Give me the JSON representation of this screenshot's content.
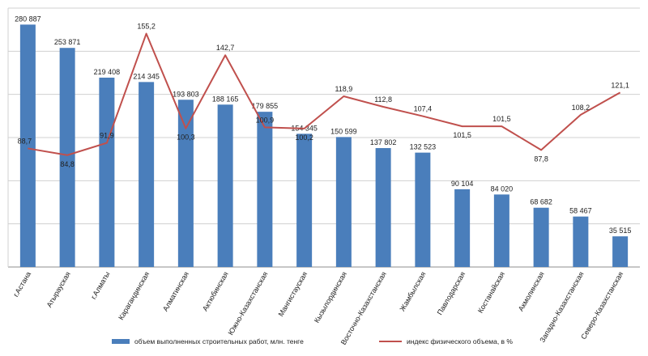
{
  "chart_data": {
    "type": "bar",
    "categories": [
      "г.Астана",
      "Атырауская",
      "г.Алматы",
      "Карагандинская",
      "Алматинская",
      "Актюбинская",
      "Южно-Казахстанская",
      "Мангистауская",
      "Кызылординская",
      "Восточно-Казахстанская",
      "Жамбылская",
      "Павлодарская",
      "Костанайская",
      "Акмолинская",
      "Западно-Казахстанская",
      "Северо-Казахстанская"
    ],
    "series": [
      {
        "name": "объем выполненных строительных работ, млн. тенге",
        "type": "bar",
        "axis": "left",
        "color": "#4a7ebb",
        "values": [
          280887,
          253871,
          219408,
          214345,
          193803,
          188165,
          179855,
          154345,
          150599,
          137802,
          132523,
          90104,
          84020,
          68682,
          58467,
          35515
        ],
        "labels": [
          "280 887",
          "253 871",
          "219 408",
          "214 345",
          "193 803",
          "188 165",
          "179 855",
          "154 345",
          "150 599",
          "137 802",
          "132 523",
          "90 104",
          "84 020",
          "68 682",
          "58 467",
          "35 515"
        ]
      },
      {
        "name": "индекс физического объема, в %",
        "type": "line",
        "axis": "right",
        "color": "#c0504d",
        "values": [
          88.7,
          84.8,
          91.9,
          155.2,
          100.3,
          142.7,
          100.9,
          100.2,
          118.9,
          112.8,
          107.4,
          101.5,
          101.5,
          87.8,
          108.2,
          121.1
        ],
        "labels": [
          "88,7",
          "84,8",
          "91,9",
          "155,2",
          "100,3",
          "142,7",
          "100,9",
          "100,2",
          "118,9",
          "112,8",
          "107,4",
          "101,5",
          "101,5",
          "87,8",
          "108,2",
          "121,1"
        ]
      }
    ],
    "ylim": [
      0,
      300000
    ],
    "y2lim": [
      20,
      170
    ],
    "grid": true,
    "legend": "bottom"
  }
}
